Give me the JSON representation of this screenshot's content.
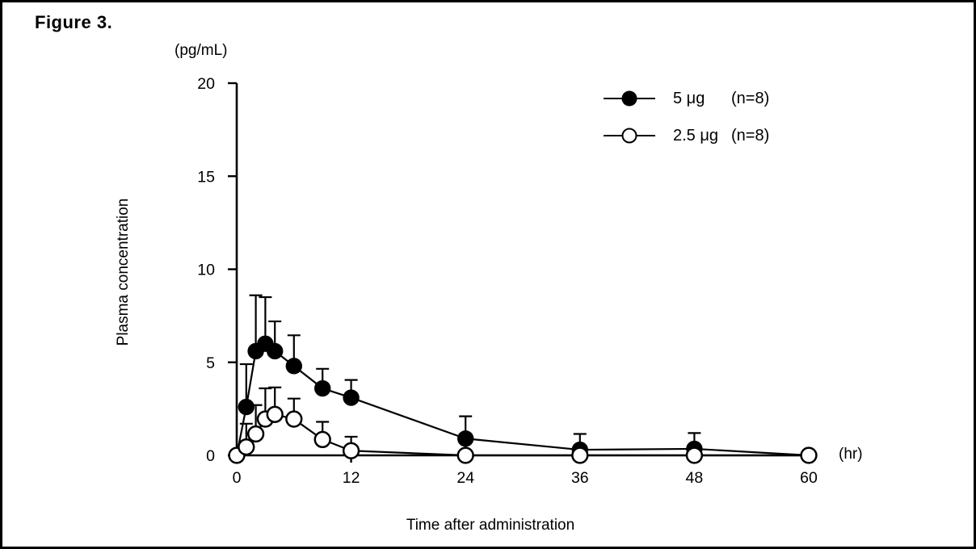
{
  "figure": {
    "label": "Figure 3."
  },
  "legend": {
    "items": [
      {
        "label": "5 μg",
        "count": "(n=8)",
        "marker": "filled-circle"
      },
      {
        "label": "2.5 μg",
        "count": "(n=8)",
        "marker": "open-circle"
      }
    ]
  },
  "colors": {
    "foreground": "#000000",
    "background": "#ffffff"
  },
  "chart_data": {
    "type": "line",
    "title": "Figure 3.",
    "xlabel": "Time after administration",
    "ylabel": "Plasma concentration",
    "x_unit_label": "(hr)",
    "y_unit_label": "(pg/mL)",
    "xlim": [
      0,
      60
    ],
    "ylim": [
      0,
      20
    ],
    "x_ticks": [
      0,
      12,
      24,
      36,
      48,
      60
    ],
    "y_ticks": [
      0,
      5,
      10,
      15,
      20
    ],
    "grid": false,
    "legend_position": "upper-right",
    "error_bars": "upper, +SD",
    "x": [
      0,
      1,
      2,
      3,
      4,
      6,
      9,
      12,
      24,
      36,
      48,
      60
    ],
    "series": [
      {
        "name": "5 μg (n=8)",
        "marker": "filled-circle",
        "values": [
          0,
          2.6,
          5.6,
          6.0,
          5.6,
          4.8,
          3.6,
          3.1,
          0.9,
          0.3,
          0.35,
          0
        ],
        "errors_upper": [
          null,
          2.3,
          3.0,
          2.5,
          1.6,
          1.65,
          1.05,
          0.95,
          1.2,
          0.85,
          0.85,
          null
        ]
      },
      {
        "name": "2.5 μg (n=8)",
        "marker": "open-circle",
        "values": [
          0,
          0.45,
          1.15,
          1.95,
          2.2,
          1.95,
          0.85,
          0.25,
          0,
          0,
          0,
          0
        ],
        "errors_upper": [
          null,
          1.25,
          1.55,
          1.65,
          1.45,
          1.1,
          0.95,
          0.75,
          null,
          null,
          null,
          null
        ]
      }
    ]
  }
}
